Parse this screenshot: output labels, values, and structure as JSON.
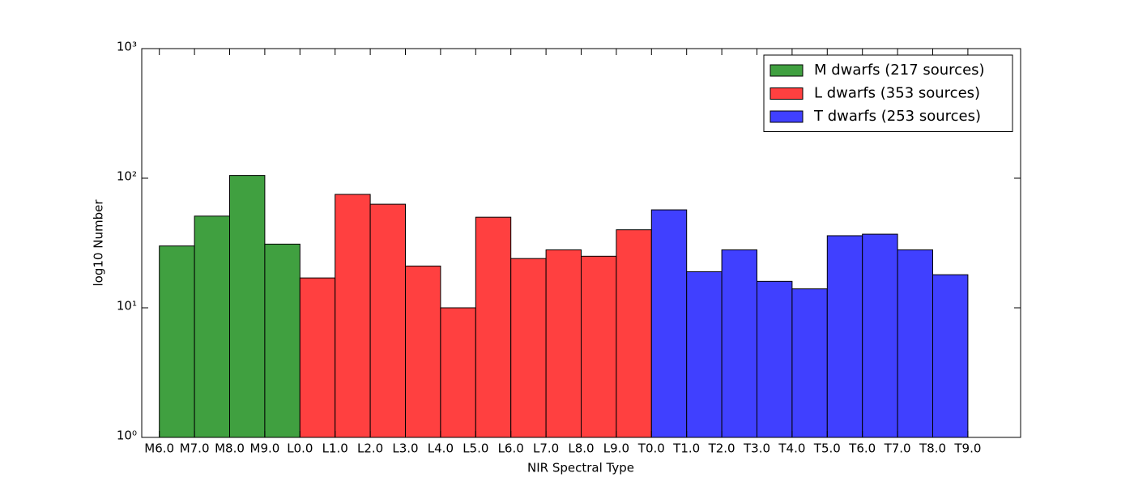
{
  "chart_data": {
    "type": "histogram",
    "xlabel": "NIR Spectral Type",
    "ylabel": "log10 Number",
    "log_y": true,
    "legend": "upper right",
    "xlim": [
      5.5,
      30.5
    ],
    "ylim": [
      1,
      1000
    ],
    "yticks": [
      {
        "value": 1,
        "label": "10⁰"
      },
      {
        "value": 10,
        "label": "10¹"
      },
      {
        "value": 100,
        "label": "10²"
      },
      {
        "value": 1000,
        "label": "10³"
      }
    ],
    "xticks": [
      {
        "value": 6,
        "label": "M6.0"
      },
      {
        "value": 7,
        "label": "M7.0"
      },
      {
        "value": 8,
        "label": "M8.0"
      },
      {
        "value": 9,
        "label": "M9.0"
      },
      {
        "value": 10,
        "label": "L0.0"
      },
      {
        "value": 11,
        "label": "L1.0"
      },
      {
        "value": 12,
        "label": "L2.0"
      },
      {
        "value": 13,
        "label": "L3.0"
      },
      {
        "value": 14,
        "label": "L4.0"
      },
      {
        "value": 15,
        "label": "L5.0"
      },
      {
        "value": 16,
        "label": "L6.0"
      },
      {
        "value": 17,
        "label": "L7.0"
      },
      {
        "value": 18,
        "label": "L8.0"
      },
      {
        "value": 19,
        "label": "L9.0"
      },
      {
        "value": 20,
        "label": "T0.0"
      },
      {
        "value": 21,
        "label": "T1.0"
      },
      {
        "value": 22,
        "label": "T2.0"
      },
      {
        "value": 23,
        "label": "T3.0"
      },
      {
        "value": 24,
        "label": "T4.0"
      },
      {
        "value": 25,
        "label": "T5.0"
      },
      {
        "value": 26,
        "label": "T6.0"
      },
      {
        "value": 27,
        "label": "T7.0"
      },
      {
        "value": 28,
        "label": "T8.0"
      },
      {
        "value": 29,
        "label": "T9.0"
      }
    ],
    "series": [
      {
        "name": "M dwarfs (217 sources)",
        "color": "#40a040",
        "bins": [
          6,
          7,
          8,
          9,
          10
        ],
        "values": [
          30,
          51,
          105,
          31
        ]
      },
      {
        "name": "L dwarfs (353 sources)",
        "color": "#ff4040",
        "bins": [
          10,
          11,
          12,
          13,
          14,
          15,
          16,
          17,
          18,
          19,
          20
        ],
        "values": [
          17,
          75,
          63,
          21,
          10,
          50,
          24,
          28,
          25,
          40
        ]
      },
      {
        "name": "T dwarfs (253 sources)",
        "color": "#4040ff",
        "bins": [
          20,
          21,
          22,
          23,
          24,
          25,
          26,
          27,
          28,
          29,
          30
        ],
        "values": [
          57,
          19,
          28,
          16,
          14,
          36,
          37,
          28,
          18,
          0
        ]
      }
    ]
  }
}
